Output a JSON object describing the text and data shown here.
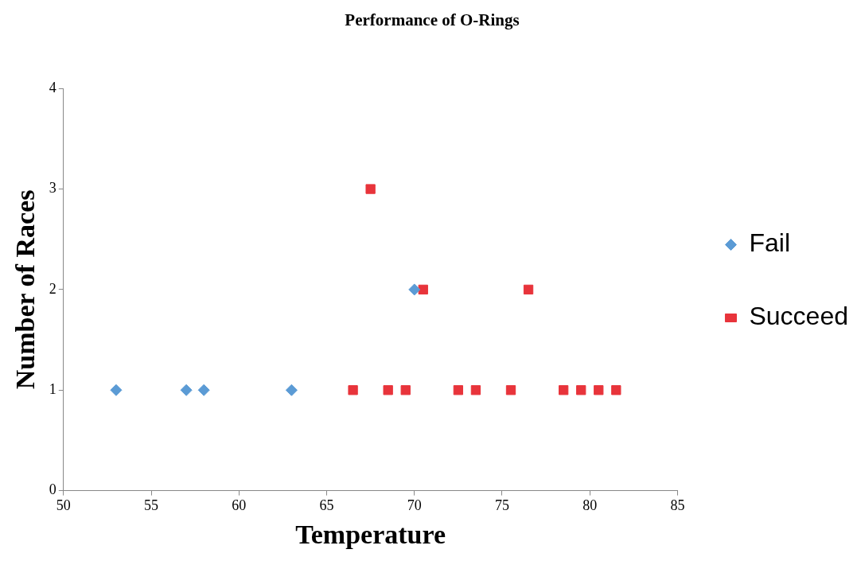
{
  "chart_data": {
    "type": "scatter",
    "title": "Performance of O-Rings",
    "xlabel": "Temperature",
    "ylabel": "Number of Races",
    "xlim": [
      50,
      85
    ],
    "xticks": [
      50,
      55,
      60,
      65,
      70,
      75,
      80,
      85
    ],
    "ylim": [
      0,
      4
    ],
    "yticks": [
      0,
      1,
      2,
      3,
      4
    ],
    "grid": false,
    "legend": "right",
    "series": [
      {
        "name": "Fail",
        "color": "#5b9bd5",
        "marker": "diamond",
        "x": [
          53,
          57,
          58,
          63,
          70
        ],
        "values": [
          1,
          1,
          1,
          1,
          2
        ]
      },
      {
        "name": "Succeed",
        "color": "#e8343b",
        "marker": "square",
        "x": [
          66.5,
          67.5,
          68.5,
          69.5,
          70.5,
          72.5,
          73.5,
          75.5,
          76.5,
          78.5,
          79.5,
          80.5,
          81.5
        ],
        "values": [
          1,
          3,
          1,
          1,
          2,
          1,
          1,
          1,
          2,
          1,
          1,
          1,
          1
        ]
      }
    ]
  }
}
